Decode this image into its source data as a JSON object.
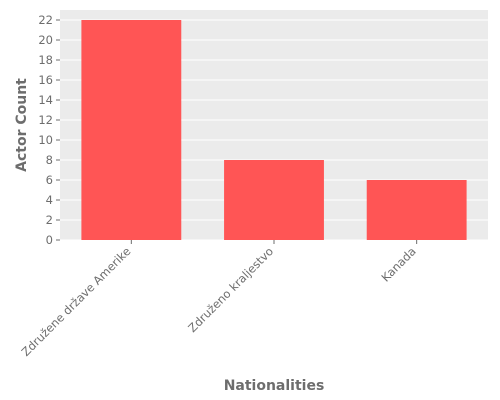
{
  "chart_data": {
    "type": "bar",
    "title": "",
    "xlabel": "Nationalities",
    "ylabel": "Actor Count",
    "categories": [
      "Združene države Amerike",
      "Združeno kraljestvo",
      "Kanada"
    ],
    "values": [
      22,
      8,
      6
    ],
    "ylim": [
      0,
      23
    ],
    "yticks": [
      0,
      2,
      4,
      6,
      8,
      10,
      12,
      14,
      16,
      18,
      20,
      22
    ],
    "grid": true,
    "legend": "none",
    "colors": {
      "bar": "#ff5555",
      "panel": "#ebebeb",
      "grid": "#ffffff",
      "text": "#6d6d6d"
    }
  }
}
